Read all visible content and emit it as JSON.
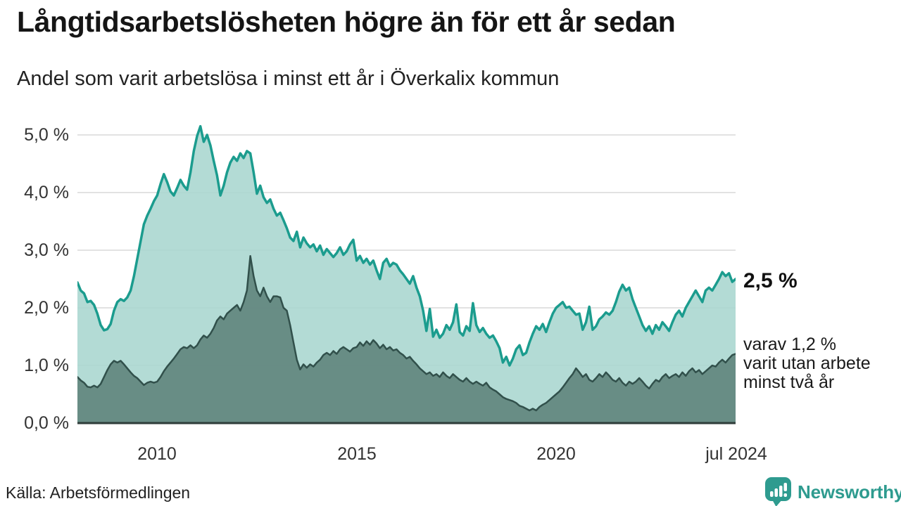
{
  "header": {
    "title": "Långtidsarbetslösheten högre än för ett år sedan",
    "subtitle": "Andel som varit arbetslösa i minst ett år i Överkalix kommun"
  },
  "annotations": {
    "latest_total": "2,5 %",
    "sub_line1": "varav 1,2 %",
    "sub_line2": "varit utan arbete",
    "sub_line3": "minst två år"
  },
  "footer": {
    "source": "Källa: Arbetsförmedlingen",
    "brand_name": "Newsworthy",
    "brand_color": "#2E9B8F"
  },
  "chart_data": {
    "type": "area",
    "title": "Långtidsarbetslösheten högre än för ett år sedan",
    "subtitle": "Andel som varit arbetslösa i minst ett år i Överkalix kommun",
    "xlabel": "",
    "ylabel": "",
    "unit": "%",
    "x_start": "2008-01",
    "x_end": "2024-07",
    "freq": "monthly",
    "ylim": [
      0,
      5.3
    ],
    "grid": true,
    "legend_position": "none",
    "y_ticks": [
      {
        "value": 0,
        "label": "0,0 %"
      },
      {
        "value": 1,
        "label": "1,0 %"
      },
      {
        "value": 2,
        "label": "2,0 %"
      },
      {
        "value": 3,
        "label": "3,0 %"
      },
      {
        "value": 4,
        "label": "4,0 %"
      },
      {
        "value": 5,
        "label": "5,0 %"
      }
    ],
    "x_ticks": [
      {
        "index": 24,
        "label": "2010"
      },
      {
        "index": 84,
        "label": "2015"
      },
      {
        "index": 144,
        "label": "2020"
      },
      {
        "index": 198,
        "label": "jul 2024"
      }
    ],
    "series": [
      {
        "name": "Andel arbetslösa minst ett år",
        "latest_value": 2.5,
        "line_color": "#1B9C8E",
        "fill_color": "#A9D6CF",
        "fill_opacity": 0.88,
        "line_width": 3.5,
        "values": [
          2.44,
          2.3,
          2.25,
          2.1,
          2.12,
          2.05,
          1.9,
          1.7,
          1.61,
          1.63,
          1.72,
          1.95,
          2.1,
          2.15,
          2.12,
          2.18,
          2.3,
          2.55,
          2.85,
          3.15,
          3.45,
          3.6,
          3.72,
          3.85,
          3.95,
          4.15,
          4.32,
          4.18,
          4.02,
          3.95,
          4.08,
          4.22,
          4.12,
          4.05,
          4.35,
          4.72,
          4.98,
          5.15,
          4.88,
          5.0,
          4.82,
          4.55,
          4.3,
          3.95,
          4.12,
          4.35,
          4.52,
          4.62,
          4.55,
          4.68,
          4.6,
          4.72,
          4.68,
          4.35,
          3.98,
          4.12,
          3.92,
          3.82,
          3.88,
          3.72,
          3.6,
          3.65,
          3.52,
          3.38,
          3.22,
          3.16,
          3.32,
          3.05,
          3.22,
          3.12,
          3.05,
          3.1,
          2.98,
          3.08,
          2.92,
          3.02,
          2.95,
          2.88,
          2.95,
          3.05,
          2.92,
          2.98,
          3.1,
          3.18,
          2.82,
          2.9,
          2.78,
          2.85,
          2.75,
          2.82,
          2.65,
          2.5,
          2.78,
          2.85,
          2.72,
          2.78,
          2.75,
          2.65,
          2.58,
          2.5,
          2.42,
          2.55,
          2.35,
          2.2,
          1.95,
          1.6,
          1.98,
          1.5,
          1.62,
          1.48,
          1.55,
          1.7,
          1.62,
          1.75,
          2.06,
          1.58,
          1.52,
          1.68,
          1.6,
          2.08,
          1.7,
          1.58,
          1.65,
          1.55,
          1.48,
          1.52,
          1.42,
          1.3,
          1.05,
          1.15,
          1.0,
          1.12,
          1.28,
          1.35,
          1.18,
          1.22,
          1.4,
          1.55,
          1.68,
          1.62,
          1.72,
          1.58,
          1.75,
          1.9,
          2.0,
          2.05,
          2.1,
          2.0,
          2.02,
          1.95,
          1.88,
          1.9,
          1.62,
          1.75,
          2.02,
          1.62,
          1.68,
          1.8,
          1.85,
          1.92,
          1.88,
          1.95,
          2.1,
          2.28,
          2.4,
          2.3,
          2.35,
          2.15,
          2.0,
          1.85,
          1.7,
          1.6,
          1.68,
          1.55,
          1.7,
          1.62,
          1.75,
          1.68,
          1.6,
          1.75,
          1.88,
          1.95,
          1.85,
          2.0,
          2.1,
          2.2,
          2.3,
          2.2,
          2.1,
          2.3,
          2.35,
          2.3,
          2.4,
          2.5,
          2.62,
          2.55,
          2.6,
          2.45,
          2.5
        ]
      },
      {
        "name": "Andel utan arbete minst två år",
        "latest_value": 1.2,
        "line_color": "#31504B",
        "fill_color": "#62867F",
        "fill_opacity": 0.93,
        "line_width": 2.5,
        "values": [
          0.8,
          0.74,
          0.7,
          0.63,
          0.62,
          0.65,
          0.62,
          0.68,
          0.8,
          0.92,
          1.02,
          1.08,
          1.05,
          1.08,
          1.02,
          0.95,
          0.88,
          0.82,
          0.78,
          0.72,
          0.66,
          0.7,
          0.72,
          0.7,
          0.72,
          0.8,
          0.9,
          0.98,
          1.05,
          1.12,
          1.2,
          1.28,
          1.32,
          1.3,
          1.35,
          1.3,
          1.35,
          1.45,
          1.52,
          1.48,
          1.55,
          1.65,
          1.78,
          1.85,
          1.8,
          1.9,
          1.95,
          2.0,
          2.05,
          1.95,
          2.1,
          2.3,
          2.9,
          2.55,
          2.3,
          2.2,
          2.35,
          2.2,
          2.1,
          2.2,
          2.2,
          2.18,
          2.0,
          1.95,
          1.7,
          1.4,
          1.1,
          0.93,
          1.02,
          0.96,
          1.02,
          0.98,
          1.05,
          1.1,
          1.18,
          1.22,
          1.18,
          1.25,
          1.2,
          1.28,
          1.32,
          1.28,
          1.24,
          1.3,
          1.32,
          1.4,
          1.34,
          1.42,
          1.36,
          1.44,
          1.38,
          1.3,
          1.36,
          1.28,
          1.32,
          1.26,
          1.28,
          1.22,
          1.18,
          1.12,
          1.15,
          1.08,
          1.02,
          0.95,
          0.9,
          0.85,
          0.88,
          0.82,
          0.85,
          0.8,
          0.88,
          0.82,
          0.78,
          0.85,
          0.8,
          0.75,
          0.72,
          0.78,
          0.72,
          0.68,
          0.72,
          0.68,
          0.65,
          0.7,
          0.62,
          0.58,
          0.55,
          0.5,
          0.45,
          0.42,
          0.4,
          0.38,
          0.35,
          0.3,
          0.28,
          0.25,
          0.22,
          0.25,
          0.22,
          0.28,
          0.32,
          0.35,
          0.4,
          0.45,
          0.5,
          0.55,
          0.62,
          0.7,
          0.78,
          0.85,
          0.95,
          0.88,
          0.8,
          0.85,
          0.75,
          0.72,
          0.78,
          0.85,
          0.8,
          0.88,
          0.82,
          0.75,
          0.72,
          0.78,
          0.7,
          0.65,
          0.72,
          0.68,
          0.72,
          0.78,
          0.72,
          0.65,
          0.6,
          0.68,
          0.75,
          0.72,
          0.8,
          0.85,
          0.78,
          0.82,
          0.85,
          0.8,
          0.88,
          0.82,
          0.9,
          0.95,
          0.88,
          0.92,
          0.85,
          0.9,
          0.95,
          1.0,
          0.98,
          1.05,
          1.1,
          1.05,
          1.12,
          1.18,
          1.2
        ]
      }
    ]
  }
}
